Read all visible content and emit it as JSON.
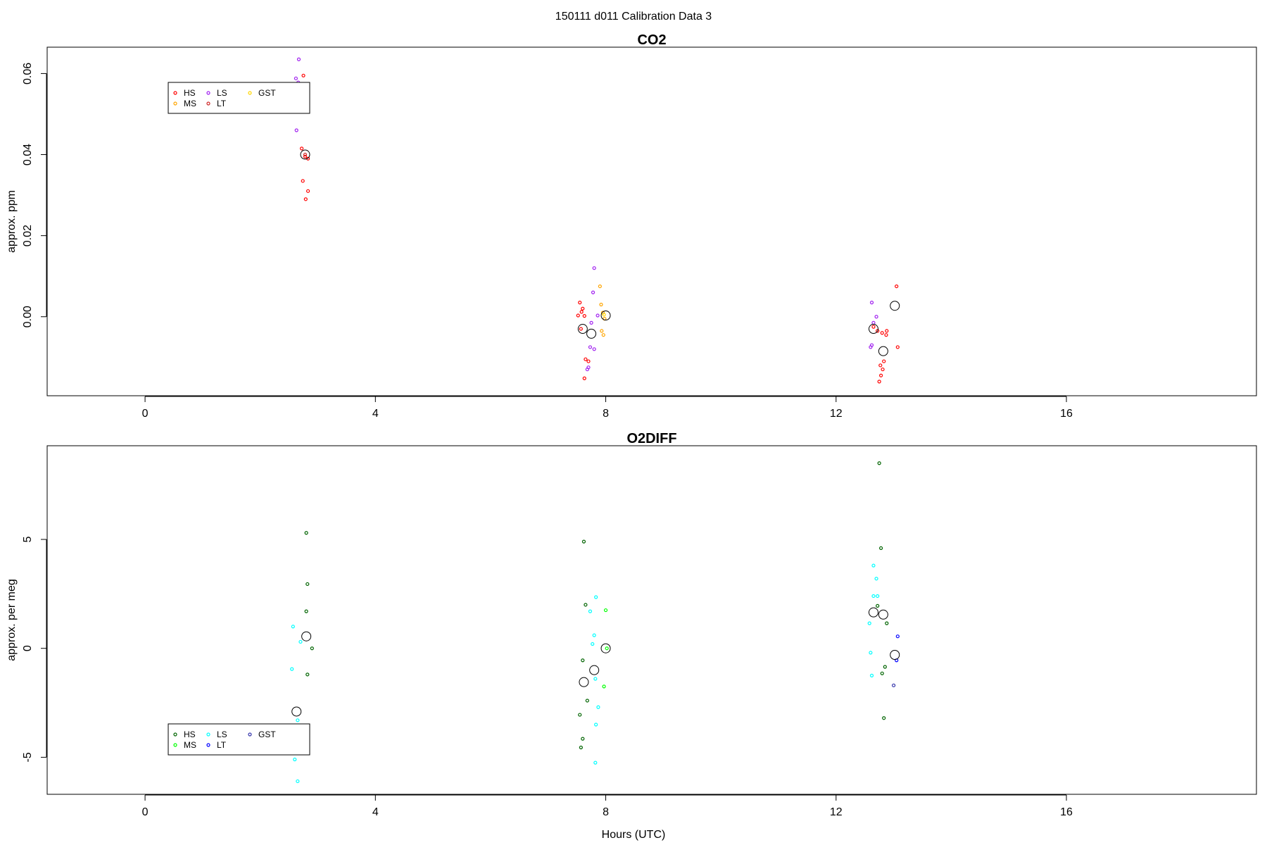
{
  "figure": {
    "title": "150111   d011   Calibration Data 3",
    "xlabel": "Hours (UTC)"
  },
  "chart_data": [
    {
      "type": "scatter",
      "title": "CO2",
      "ylabel": "approx. ppm",
      "xlabel": "",
      "xlim": [
        -1.7,
        19.3
      ],
      "ylim": [
        -0.0195,
        0.0665
      ],
      "xticks": [
        0,
        4,
        8,
        12,
        16
      ],
      "xtick_labels": [
        "0",
        "4",
        "8",
        "12",
        "16"
      ],
      "yticks": [
        0.0,
        0.02,
        0.04,
        0.06
      ],
      "ytick_labels": [
        "0.00",
        "0.02",
        "0.04",
        "0.06"
      ],
      "grid": false,
      "legend": {
        "placement": "top-left",
        "entries": [
          {
            "label": "HS",
            "color": "#ff0000"
          },
          {
            "label": "MS",
            "color": "#ffa500"
          },
          {
            "label": "LS",
            "color": "#a020f0"
          },
          {
            "label": "LT",
            "color": "#cd2626"
          },
          {
            "label": "GST",
            "color": "#ffd700"
          }
        ]
      },
      "series": [
        {
          "name": "HS",
          "color": "#ff0000",
          "marker": "small-circle",
          "points": [
            [
              2.75,
              0.0595
            ],
            [
              2.72,
              0.0415
            ],
            [
              2.78,
              0.0395
            ],
            [
              2.83,
              0.039
            ],
            [
              2.74,
              0.0335
            ],
            [
              2.83,
              0.031
            ],
            [
              2.79,
              0.029
            ],
            [
              7.55,
              0.0035
            ],
            [
              7.6,
              0.002
            ],
            [
              7.58,
              0.0012
            ],
            [
              7.52,
              0.0003
            ],
            [
              7.63,
              0.0002
            ],
            [
              7.57,
              -0.003
            ],
            [
              7.65,
              -0.0105
            ],
            [
              7.7,
              -0.011
            ],
            [
              7.63,
              -0.0152
            ],
            [
              12.65,
              -0.0025
            ],
            [
              12.72,
              -0.0035
            ],
            [
              12.8,
              -0.004
            ],
            [
              12.87,
              -0.0045
            ],
            [
              12.88,
              -0.0035
            ],
            [
              12.83,
              -0.011
            ],
            [
              12.77,
              -0.012
            ],
            [
              12.81,
              -0.013
            ],
            [
              12.78,
              -0.0145
            ],
            [
              12.75,
              -0.016
            ],
            [
              13.05,
              0.0075
            ],
            [
              13.07,
              -0.0075
            ]
          ]
        },
        {
          "name": "MS",
          "color": "#ffa500",
          "marker": "small-circle",
          "points": [
            [
              7.9,
              0.0075
            ],
            [
              7.92,
              0.003
            ],
            [
              7.95,
              0.001
            ],
            [
              7.98,
              -0.0005
            ],
            [
              7.93,
              -0.0035
            ],
            [
              7.96,
              -0.0045
            ]
          ]
        },
        {
          "name": "LS",
          "color": "#a020f0",
          "marker": "small-circle",
          "points": [
            [
              2.67,
              0.0635
            ],
            [
              2.62,
              0.0588
            ],
            [
              2.66,
              0.0578
            ],
            [
              2.63,
              0.046
            ],
            [
              7.8,
              0.012
            ],
            [
              7.78,
              0.006
            ],
            [
              7.86,
              0.0003
            ],
            [
              7.75,
              -0.0015
            ],
            [
              7.73,
              -0.0075
            ],
            [
              7.8,
              -0.008
            ],
            [
              7.7,
              -0.0125
            ],
            [
              7.68,
              -0.013
            ],
            [
              12.62,
              0.0035
            ],
            [
              12.7,
              0.0
            ],
            [
              12.65,
              -0.0015
            ],
            [
              12.62,
              -0.007
            ],
            [
              12.6,
              -0.0075
            ]
          ]
        },
        {
          "name": "LT",
          "color": "#cd2626",
          "marker": "small-circle",
          "points": [
            [
              2.78,
              0.04
            ]
          ]
        },
        {
          "name": "GST",
          "color": "#ffd700",
          "marker": "small-circle",
          "points": [
            [
              7.97,
              0.0005
            ]
          ]
        },
        {
          "name": "",
          "color": "#000000",
          "marker": "mean-circle",
          "points": [
            [
              2.78,
              0.04
            ],
            [
              7.6,
              -0.003
            ],
            [
              7.75,
              -0.0042
            ],
            [
              8.0,
              0.0003
            ],
            [
              12.65,
              -0.003
            ],
            [
              12.82,
              -0.0085
            ],
            [
              13.02,
              0.0027
            ]
          ]
        }
      ]
    },
    {
      "type": "scatter",
      "title": "O2DIFF",
      "ylabel": "approx. per meg",
      "xlabel": "Hours (UTC)",
      "xlim": [
        -1.7,
        19.3
      ],
      "ylim": [
        -6.7,
        9.3
      ],
      "xticks": [
        0,
        4,
        8,
        12,
        16
      ],
      "xtick_labels": [
        "0",
        "4",
        "8",
        "12",
        "16"
      ],
      "yticks": [
        -5,
        0,
        5
      ],
      "ytick_labels": [
        "-5",
        "0",
        "5"
      ],
      "grid": false,
      "legend": {
        "placement": "bottom-left",
        "entries": [
          {
            "label": "HS",
            "color": "#006400"
          },
          {
            "label": "MS",
            "color": "#00ff00"
          },
          {
            "label": "LS",
            "color": "#00ffff"
          },
          {
            "label": "LT",
            "color": "#0000ff"
          },
          {
            "label": "GST",
            "color": "#3333aa"
          }
        ]
      },
      "series": [
        {
          "name": "HS",
          "color": "#006400",
          "marker": "small-circle",
          "points": [
            [
              2.8,
              5.3
            ],
            [
              2.82,
              2.95
            ],
            [
              2.8,
              1.7
            ],
            [
              2.9,
              0.0
            ],
            [
              2.82,
              -1.2
            ],
            [
              7.62,
              4.9
            ],
            [
              7.65,
              2.0
            ],
            [
              7.6,
              -0.55
            ],
            [
              7.68,
              -2.4
            ],
            [
              7.55,
              -3.05
            ],
            [
              7.6,
              -4.15
            ],
            [
              7.57,
              -4.55
            ],
            [
              12.75,
              8.5
            ],
            [
              12.78,
              4.6
            ],
            [
              12.72,
              1.95
            ],
            [
              12.88,
              1.15
            ],
            [
              12.85,
              -0.85
            ],
            [
              12.8,
              -1.15
            ],
            [
              12.83,
              -3.2
            ]
          ]
        },
        {
          "name": "MS",
          "color": "#00ff00",
          "marker": "small-circle",
          "points": [
            [
              8.0,
              1.75
            ],
            [
              8.02,
              0.0
            ],
            [
              7.97,
              -1.75
            ]
          ]
        },
        {
          "name": "LS",
          "color": "#00ffff",
          "marker": "small-circle",
          "points": [
            [
              2.57,
              1.0
            ],
            [
              2.7,
              0.3
            ],
            [
              2.55,
              -0.95
            ],
            [
              2.65,
              -3.3
            ],
            [
              2.6,
              -5.1
            ],
            [
              2.65,
              -6.1
            ],
            [
              7.83,
              2.35
            ],
            [
              7.73,
              1.7
            ],
            [
              7.8,
              0.6
            ],
            [
              7.77,
              0.2
            ],
            [
              7.82,
              -1.4
            ],
            [
              7.87,
              -2.7
            ],
            [
              7.83,
              -3.5
            ],
            [
              7.82,
              -5.25
            ],
            [
              12.65,
              3.8
            ],
            [
              12.7,
              3.2
            ],
            [
              12.65,
              2.4
            ],
            [
              12.72,
              2.4
            ],
            [
              12.58,
              1.15
            ],
            [
              12.6,
              -0.2
            ],
            [
              12.62,
              -1.25
            ]
          ]
        },
        {
          "name": "LT",
          "color": "#0000ff",
          "marker": "small-circle",
          "points": [
            [
              13.07,
              0.55
            ],
            [
              13.05,
              -0.55
            ]
          ]
        },
        {
          "name": "GST",
          "color": "#3333aa",
          "marker": "small-circle",
          "points": [
            [
              13.0,
              -1.7
            ]
          ]
        },
        {
          "name": "",
          "color": "#000000",
          "marker": "mean-circle",
          "points": [
            [
              2.63,
              -2.9
            ],
            [
              2.8,
              0.55
            ],
            [
              7.62,
              -1.55
            ],
            [
              7.8,
              -1.0
            ],
            [
              8.0,
              0.0
            ],
            [
              12.65,
              1.65
            ],
            [
              12.82,
              1.55
            ],
            [
              13.02,
              -0.3
            ]
          ]
        }
      ]
    }
  ]
}
